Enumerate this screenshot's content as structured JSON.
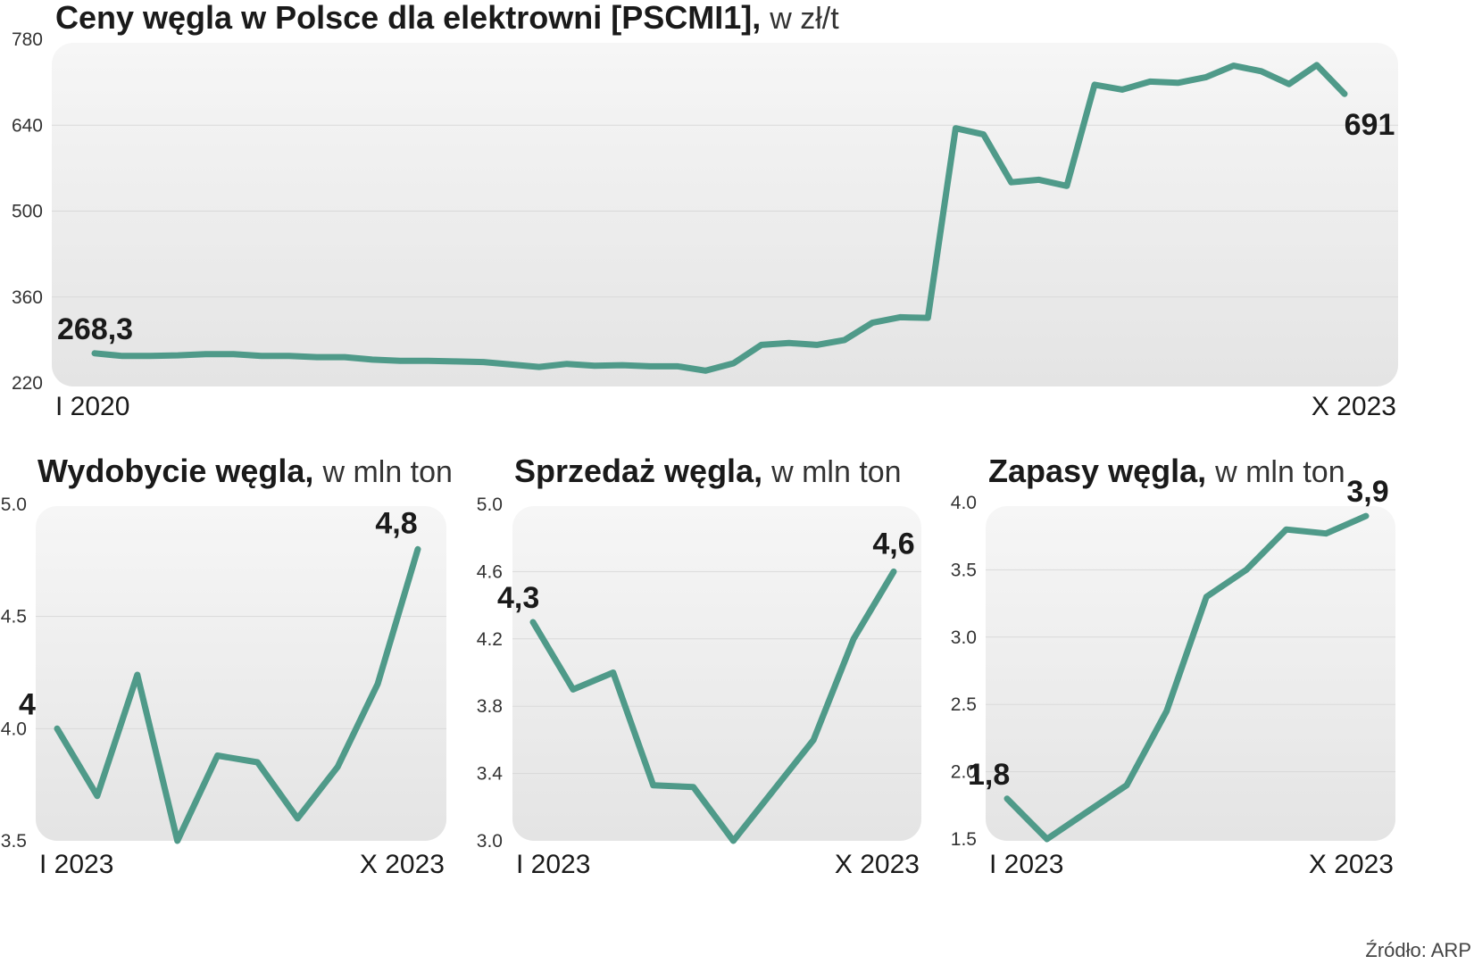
{
  "source": "Źródło: ARP",
  "colors": {
    "line": "#4f9a89",
    "panel_top": "#f6f6f6",
    "panel_bottom": "#e4e4e4"
  },
  "chart_data": [
    {
      "id": "prices",
      "type": "line",
      "title": "Ceny węgla w Polsce dla elektrowni [PSCMI1],",
      "unit": "w zł/t",
      "x_start_label": "I 2020",
      "x_end_label": "X 2023",
      "yticks": [
        "780",
        "640",
        "500",
        "360",
        "220"
      ],
      "ylim": [
        220,
        780
      ],
      "start_label": "268,3",
      "end_label": "691",
      "values": [
        268.3,
        264,
        264,
        265,
        267,
        267,
        264,
        264,
        262,
        262,
        258,
        256,
        256,
        255,
        254,
        250,
        246,
        251,
        248,
        249,
        247,
        247,
        240,
        252,
        282,
        285,
        282,
        290,
        318,
        327,
        326,
        635,
        625,
        547,
        551,
        541,
        706,
        698,
        711,
        709,
        718,
        737,
        728,
        707,
        738,
        691
      ]
    },
    {
      "id": "mining",
      "type": "line",
      "title": "Wydobycie węgla,",
      "unit": "w mln ton",
      "x_start_label": "I 2023",
      "x_end_label": "X 2023",
      "yticks": [
        "5.0",
        "4.5",
        "4.0",
        "3.5"
      ],
      "ylim": [
        3.5,
        5.0
      ],
      "start_label": "4",
      "end_label": "4,8",
      "values": [
        4.0,
        3.7,
        4.24,
        3.5,
        3.88,
        3.85,
        3.6,
        3.83,
        4.2,
        4.8
      ]
    },
    {
      "id": "sales",
      "type": "line",
      "title": "Sprzedaż węgla,",
      "unit": "w mln ton",
      "x_start_label": "I 2023",
      "x_end_label": "X 2023",
      "yticks": [
        "5.0",
        "4.6",
        "4.2",
        "3.8",
        "3.4",
        "3.0"
      ],
      "ylim": [
        3.0,
        5.0
      ],
      "start_label": "4,3",
      "end_label": "4,6",
      "values": [
        4.3,
        3.9,
        4.0,
        3.33,
        3.32,
        3.0,
        3.3,
        3.6,
        4.2,
        4.6
      ]
    },
    {
      "id": "stocks",
      "type": "line",
      "title": "Zapasy węgla,",
      "unit": "w mln ton",
      "x_start_label": "I 2023",
      "x_end_label": "X 2023",
      "yticks": [
        "4.0",
        "3.5",
        "3.0",
        "2.5",
        "2.0",
        "1.5"
      ],
      "ylim": [
        1.5,
        4.0
      ],
      "start_label": "1,8",
      "end_label": "3,9",
      "values": [
        1.8,
        1.5,
        1.7,
        1.9,
        2.45,
        3.3,
        3.5,
        3.8,
        3.77,
        3.9
      ]
    }
  ]
}
